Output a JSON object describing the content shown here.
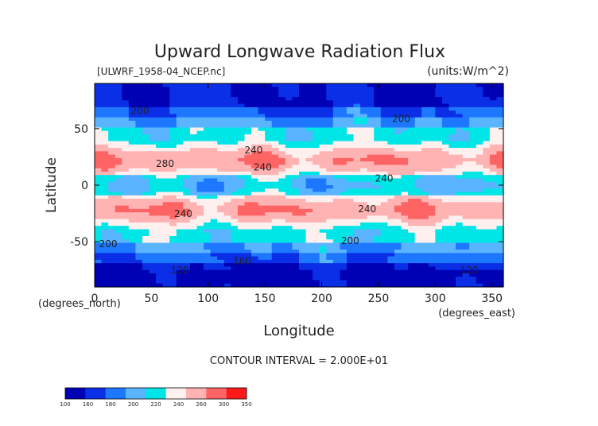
{
  "chart_data": {
    "type": "heatmap",
    "title": "Upward Longwave Radiation Flux",
    "subtitle_left": "[ULWRF_1958-04_NCEP.nc]",
    "subtitle_right": "(units:W/m^2)",
    "xlabel": "Longitude",
    "ylabel": "Latitude",
    "x_unit_label": "(degrees_east)",
    "y_unit_label": "(degrees_north)",
    "xlim": [
      0,
      360
    ],
    "ylim": [
      -90,
      90
    ],
    "x_ticks": [
      0,
      50,
      100,
      150,
      200,
      250,
      300,
      350
    ],
    "y_ticks": [
      -50,
      0,
      50
    ],
    "contour_interval_text": "CONTOUR INTERVAL = 2.000E+01",
    "contour_labels": [
      {
        "text": "200",
        "lon": 40,
        "lat": 63
      },
      {
        "text": "200",
        "lon": 270,
        "lat": 56
      },
      {
        "text": "240",
        "lon": 140,
        "lat": 28
      },
      {
        "text": "240",
        "lon": 148,
        "lat": 13
      },
      {
        "text": "280",
        "lon": 62,
        "lat": 16
      },
      {
        "text": "240",
        "lon": 255,
        "lat": 3
      },
      {
        "text": "240",
        "lon": 240,
        "lat": -24
      },
      {
        "text": "240",
        "lon": 78,
        "lat": -28
      },
      {
        "text": "200",
        "lon": 225,
        "lat": -52
      },
      {
        "text": "200",
        "lon": 12,
        "lat": -55
      },
      {
        "text": "120",
        "lon": 75,
        "lat": -78
      },
      {
        "text": "160",
        "lon": 130,
        "lat": -70
      },
      {
        "text": "120",
        "lon": 330,
        "lat": -78
      }
    ],
    "colorbar": {
      "levels": [
        "100",
        "160",
        "180",
        "200",
        "220",
        "240",
        "260",
        "300",
        "350"
      ],
      "colors": [
        "#0000b4",
        "#0a2fe6",
        "#1e78ff",
        "#5bb4ff",
        "#00e5e5",
        "#fff0f0",
        "#ffb3b3",
        "#ff6464",
        "#ff1a1a"
      ]
    }
  }
}
